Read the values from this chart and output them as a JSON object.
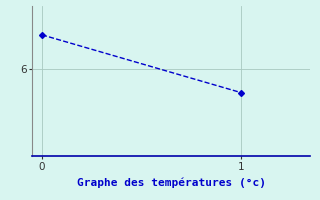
{
  "x": [
    0,
    1
  ],
  "y": [
    7.2,
    5.2
  ],
  "line_color": "#0000cc",
  "marker": "D",
  "marker_size": 3,
  "linestyle": "--",
  "linewidth": 1.0,
  "background_color": "#d8f5f0",
  "grid_color": "#a8c8c0",
  "spine_color_bottom": "#0000aa",
  "spine_color_left": "#888888",
  "xlabel": "Graphe des températures (°c)",
  "xlabel_color": "#0000cc",
  "xlabel_fontsize": 8,
  "xlabel_bold": true,
  "xlim": [
    -0.05,
    1.35
  ],
  "ylim": [
    3.0,
    8.2
  ],
  "yticks": [
    6
  ],
  "xticks": [
    0,
    1
  ],
  "tick_color": "#333333",
  "tick_fontsize": 7.5,
  "fig_width": 3.2,
  "fig_height": 2.0,
  "dpi": 100
}
